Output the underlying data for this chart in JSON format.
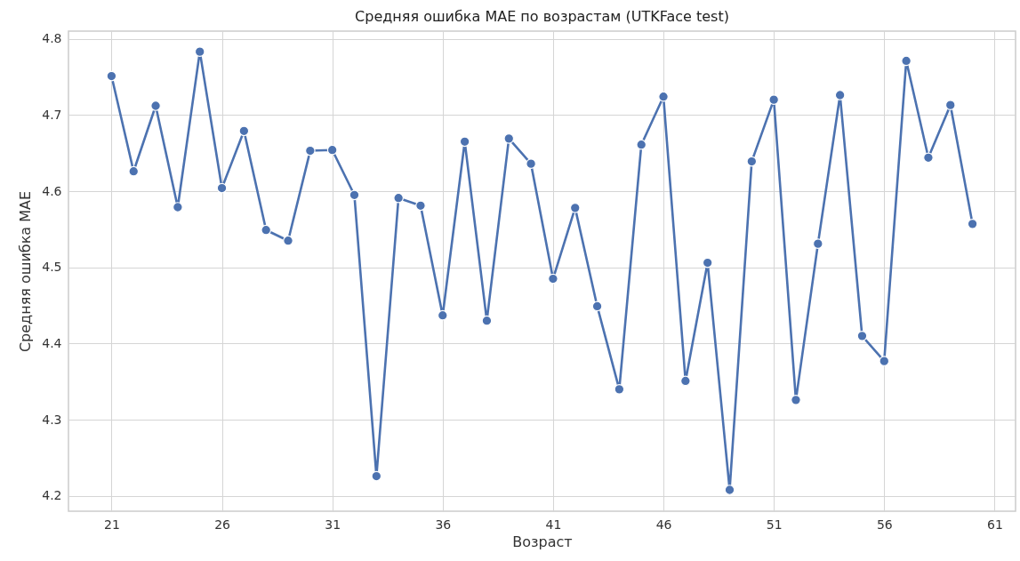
{
  "chart_data": {
    "type": "line",
    "title": "Средняя ошибка MAE по возрастам (UTKFace test)",
    "xlabel": "Возраст",
    "ylabel": "Средняя ошибка MAE",
    "x": [
      21,
      22,
      23,
      24,
      25,
      26,
      27,
      28,
      29,
      30,
      31,
      32,
      33,
      34,
      35,
      36,
      37,
      38,
      39,
      40,
      41,
      42,
      43,
      44,
      45,
      46,
      47,
      48,
      49,
      50,
      51,
      52,
      53,
      54,
      55,
      56,
      57,
      58,
      59,
      60
    ],
    "series": [
      {
        "color": "#4c72b0",
        "values": [
          4.751,
          4.626,
          4.712,
          4.579,
          4.783,
          4.604,
          4.679,
          4.549,
          4.535,
          4.653,
          4.654,
          4.595,
          4.226,
          4.591,
          4.581,
          4.437,
          4.665,
          4.43,
          4.669,
          4.636,
          4.485,
          4.578,
          4.449,
          4.34,
          4.661,
          4.724,
          4.351,
          4.506,
          4.208,
          4.639,
          4.72,
          4.326,
          4.531,
          4.726,
          4.41,
          4.377,
          4.771,
          4.644,
          4.713,
          4.557
        ]
      }
    ],
    "xlim": [
      19.05,
      61.95
    ],
    "xticks": [
      21,
      26,
      31,
      36,
      41,
      46,
      51,
      56,
      61
    ],
    "ylim": [
      4.18,
      4.81
    ],
    "yticks": [
      4.2,
      4.3,
      4.4,
      4.5,
      4.6,
      4.7,
      4.8
    ],
    "grid": true,
    "marker": "circle",
    "line_style": "solid"
  }
}
